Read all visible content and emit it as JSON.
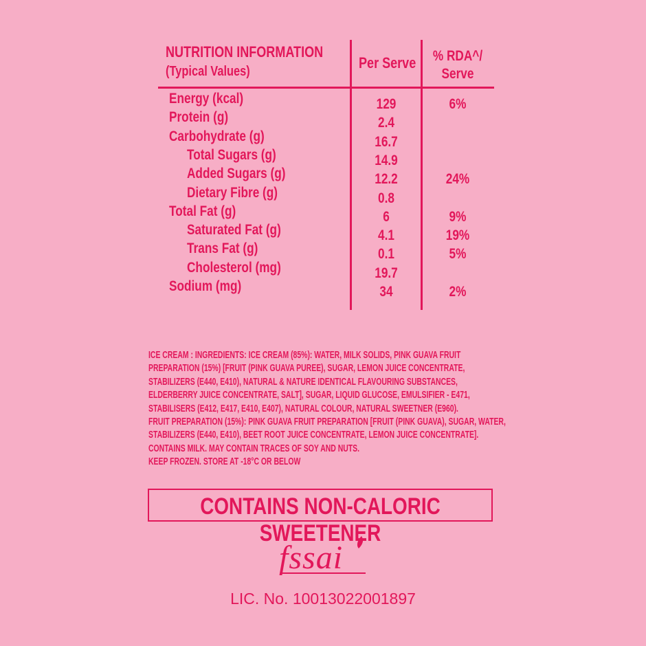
{
  "table": {
    "title": "NUTRITION INFORMATION",
    "subtitle": "(Typical Values)",
    "col_per_serve": "Per Serve",
    "col_rda_line1": "% RDA^/",
    "col_rda_line2": "Serve",
    "rows": [
      {
        "label": "Energy (kcal)",
        "indent": false,
        "per_serve": "129",
        "rda": "6%"
      },
      {
        "label": "Protein (g)",
        "indent": false,
        "per_serve": "2.4",
        "rda": ""
      },
      {
        "label": "Carbohydrate (g)",
        "indent": false,
        "per_serve": "16.7",
        "rda": ""
      },
      {
        "label": "Total Sugars (g)",
        "indent": true,
        "per_serve": "14.9",
        "rda": ""
      },
      {
        "label": "Added Sugars (g)",
        "indent": true,
        "per_serve": "12.2",
        "rda": "24%"
      },
      {
        "label": "Dietary Fibre (g)",
        "indent": true,
        "per_serve": "0.8",
        "rda": ""
      },
      {
        "label": "Total Fat (g)",
        "indent": false,
        "per_serve": "6",
        "rda": "9%"
      },
      {
        "label": "Saturated Fat (g)",
        "indent": true,
        "per_serve": "4.1",
        "rda": "19%"
      },
      {
        "label": "Trans Fat (g)",
        "indent": true,
        "per_serve": "0.1",
        "rda": "5%"
      },
      {
        "label": "Cholesterol (mg)",
        "indent": true,
        "per_serve": "19.7",
        "rda": ""
      },
      {
        "label": "Sodium (mg)",
        "indent": false,
        "per_serve": "34",
        "rda": "2%"
      }
    ]
  },
  "ingredients": {
    "lines": [
      "ICE CREAM : INGREDIENTS: ICE CREAM (85%): WATER, MILK SOLIDS, PINK GUAVA FRUIT",
      "PREPARATION (15%) [FRUIT (PINK GUAVA PUREE), SUGAR, LEMON JUICE CONCENTRATE,",
      "STABILIZERS (E440, E410), NATURAL & NATURE IDENTICAL FLAVOURING SUBSTANCES,",
      "ELDERBERRY JUICE CONCENTRATE, SALT], SUGAR, LIQUID GLUCOSE, EMULSIFIER - E471,",
      "STABILISERS (E412, E417, E410, E407), NATURAL COLOUR, NATURAL SWEETNER (E960).",
      "FRUIT PREPARATION (15%): PINK GUAVA FRUIT PREPARATION [FRUIT (PINK GUAVA), SUGAR, WATER,",
      "STABILIZERS (E440, E410), BEET ROOT JUICE CONCENTRATE, LEMON JUICE CONCENTRATE].",
      "CONTAINS MILK. MAY CONTAIN TRACES OF SOY AND NUTS.",
      "KEEP FROZEN. STORE AT -18°C OR BELOW"
    ]
  },
  "warning": "CONTAINS NON-CALORIC SWEETENER",
  "logo": {
    "text": "fssai",
    "icon": "fssai-logo"
  },
  "license": "LIC. No. 10013022001897",
  "colors": {
    "background": "#F7AEC6",
    "text": "#E2175A"
  }
}
